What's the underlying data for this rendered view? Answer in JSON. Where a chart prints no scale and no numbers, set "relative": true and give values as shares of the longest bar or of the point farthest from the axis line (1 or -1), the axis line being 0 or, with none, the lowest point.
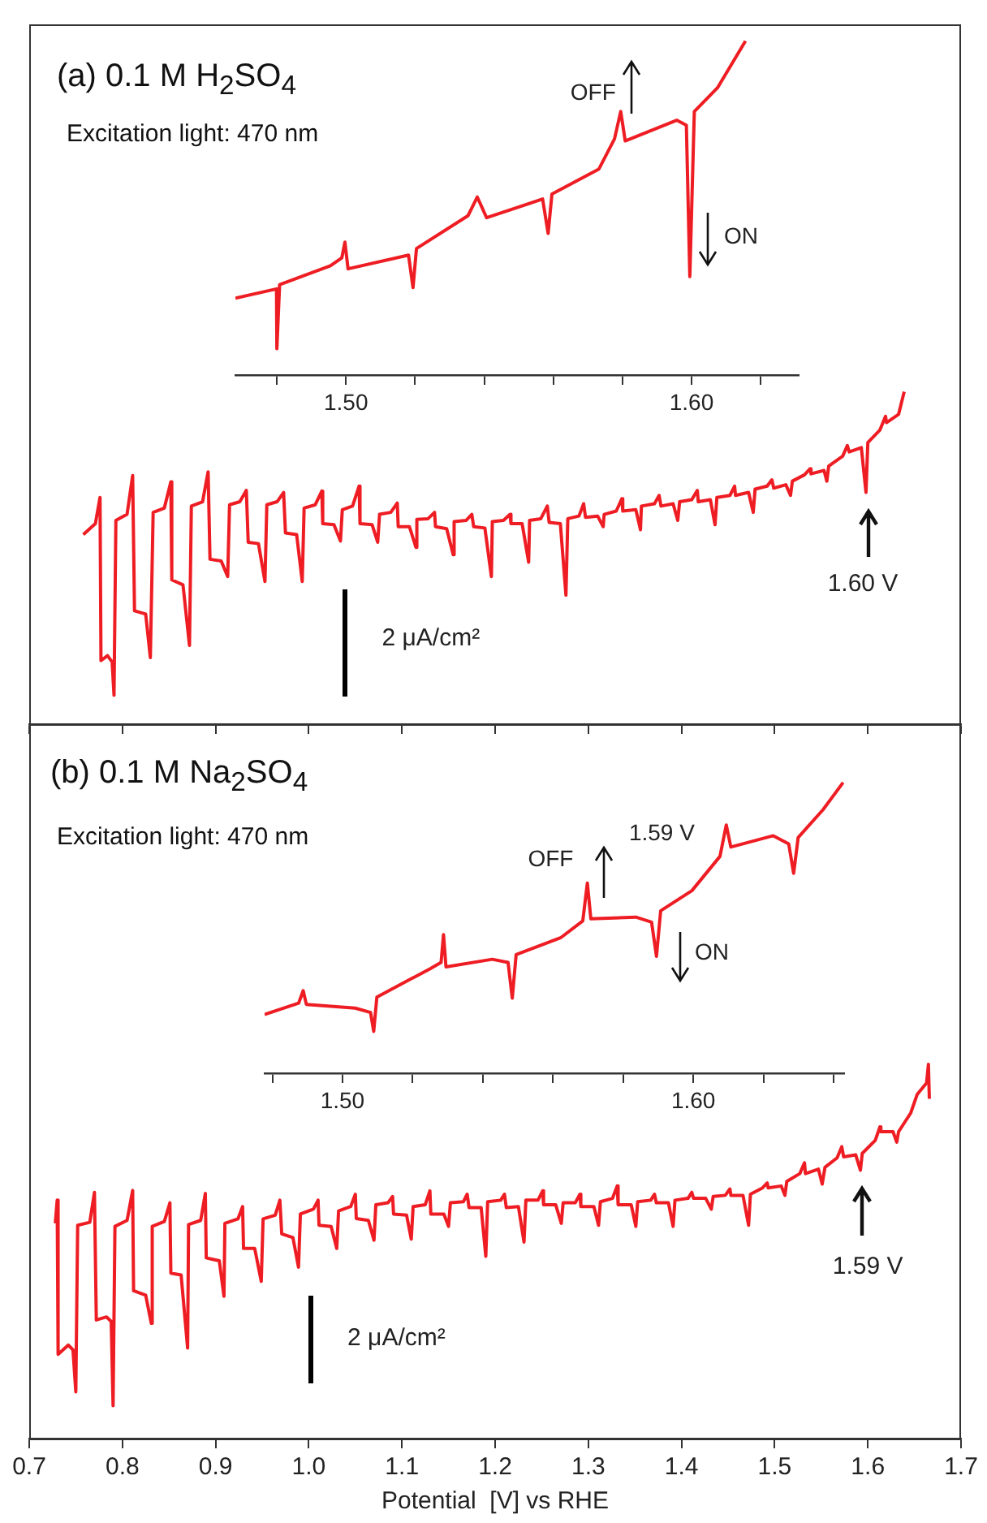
{
  "chart_data": [
    {
      "type": "line",
      "title": "(a) 0.1 M H$_{2}$SO$_{4}$",
      "subtitle": "Excitation light: 470 nm",
      "relative": true,
      "color": "#ee1d23",
      "tick_labels": false,
      "xlim": [
        0.7,
        1.7
      ],
      "xticks": [
        0.7,
        0.8,
        0.9,
        1,
        1.1,
        1.2,
        1.3,
        1.4,
        1.5,
        1.6,
        1.7
      ],
      "x": [
        0.758,
        0.771,
        0.776,
        0.777,
        0.784,
        0.789,
        0.791,
        0.793,
        0.805,
        0.811,
        0.813,
        0.825,
        0.83,
        0.833,
        0.845,
        0.852,
        0.853,
        0.865,
        0.872,
        0.874,
        0.886,
        0.892,
        0.894,
        0.906,
        0.913,
        0.915,
        0.926,
        0.933,
        0.935,
        0.946,
        0.953,
        0.955,
        0.966,
        0.973,
        0.975,
        0.987,
        0.993,
        0.995,
        1.007,
        1.014,
        1.015,
        1.027,
        1.034,
        1.036,
        1.047,
        1.054,
        1.055,
        1.068,
        1.074,
        1.076,
        1.088,
        1.095,
        1.096,
        1.108,
        1.115,
        1.116,
        1.128,
        1.135,
        1.136,
        1.148,
        1.155,
        1.156,
        1.169,
        1.175,
        1.177,
        1.189,
        1.196,
        1.197,
        1.209,
        1.216,
        1.217,
        1.229,
        1.236,
        1.237,
        1.249,
        1.256,
        1.258,
        1.27,
        1.276,
        1.278,
        1.29,
        1.295,
        1.297,
        1.31,
        1.316,
        1.317,
        1.33,
        1.336,
        1.337,
        1.351,
        1.356,
        1.357,
        1.371,
        1.376,
        1.378,
        1.391,
        1.396,
        1.398,
        1.411,
        1.417,
        1.418,
        1.431,
        1.436,
        1.438,
        1.452,
        1.457,
        1.458,
        1.472,
        1.477,
        1.479,
        1.492,
        1.497,
        1.499,
        1.512,
        1.517,
        1.519,
        1.532,
        1.538,
        1.539,
        1.553,
        1.556,
        1.558,
        1.573,
        1.578,
        1.58,
        1.593,
        1.598,
        1.6,
        1.613,
        1.619,
        1.62,
        1.633,
        1.639
      ],
      "values": [
        0.57,
        0.603,
        0.682,
        0.191,
        0.206,
        0.187,
        0.087,
        0.613,
        0.631,
        0.748,
        0.341,
        0.331,
        0.2,
        0.637,
        0.65,
        0.729,
        0.434,
        0.419,
        0.237,
        0.656,
        0.669,
        0.759,
        0.496,
        0.491,
        0.444,
        0.66,
        0.669,
        0.703,
        0.547,
        0.543,
        0.429,
        0.66,
        0.669,
        0.697,
        0.575,
        0.57,
        0.429,
        0.65,
        0.66,
        0.701,
        0.603,
        0.6,
        0.551,
        0.645,
        0.656,
        0.716,
        0.603,
        0.6,
        0.547,
        0.631,
        0.637,
        0.665,
        0.594,
        0.594,
        0.532,
        0.616,
        0.618,
        0.637,
        0.594,
        0.588,
        0.51,
        0.609,
        0.613,
        0.631,
        0.594,
        0.59,
        0.444,
        0.609,
        0.613,
        0.631,
        0.603,
        0.603,
        0.487,
        0.613,
        0.618,
        0.656,
        0.607,
        0.603,
        0.388,
        0.618,
        0.626,
        0.663,
        0.622,
        0.626,
        0.594,
        0.631,
        0.641,
        0.678,
        0.641,
        0.645,
        0.585,
        0.656,
        0.663,
        0.688,
        0.656,
        0.663,
        0.613,
        0.669,
        0.675,
        0.703,
        0.669,
        0.675,
        0.6,
        0.682,
        0.688,
        0.716,
        0.688,
        0.697,
        0.637,
        0.707,
        0.716,
        0.735,
        0.71,
        0.72,
        0.688,
        0.731,
        0.75,
        0.768,
        0.753,
        0.763,
        0.731,
        0.776,
        0.806,
        0.838,
        0.819,
        0.832,
        0.697,
        0.847,
        0.885,
        0.926,
        0.907,
        0.932,
        1.0
      ],
      "annotations": [
        "1.60 V",
        "2 μA/cm²"
      ]
    },
    {
      "type": "line",
      "relative": true,
      "color": "#ee1d23",
      "tick_labels": "x",
      "xlim": [
        1.468,
        1.631
      ],
      "xticks": [
        {
          "value": 1.48,
          "label": null
        },
        {
          "value": 1.5,
          "label": "1.50"
        },
        {
          "value": 1.52,
          "label": null
        },
        {
          "value": 1.54,
          "label": null
        },
        {
          "value": 1.56,
          "label": null
        },
        {
          "value": 1.58,
          "label": null
        },
        {
          "value": 1.6,
          "label": "1.60"
        },
        {
          "value": 1.62,
          "label": null
        }
      ],
      "x": [
        1.468,
        1.4799,
        1.48,
        1.4808,
        1.4955,
        1.4988,
        1.4997,
        1.5006,
        1.5181,
        1.5194,
        1.5204,
        1.5353,
        1.538,
        1.5407,
        1.5569,
        1.5585,
        1.5596,
        1.5732,
        1.5777,
        1.5795,
        1.5808,
        1.5957,
        1.5985,
        1.5995,
        1.6008,
        1.6075,
        1.6156
      ],
      "values": [
        0.23,
        0.258,
        0.079,
        0.271,
        0.327,
        0.351,
        0.398,
        0.318,
        0.359,
        0.262,
        0.379,
        0.477,
        0.533,
        0.471,
        0.527,
        0.424,
        0.542,
        0.617,
        0.707,
        0.789,
        0.701,
        0.763,
        0.748,
        0.295,
        0.789,
        0.86,
        1.0
      ],
      "annotations": [
        "OFF",
        "ON"
      ]
    },
    {
      "type": "line",
      "title": "(b) 0.1 M Na$_{2}$SO$_{4}$",
      "subtitle": "Excitation light: 470 nm",
      "relative": true,
      "color": "#ee1d23",
      "tick_labels": "x",
      "xlabel": "Potential  [V] vs RHE",
      "xlim": [
        0.7,
        1.7
      ],
      "xticks": [
        0.7,
        0.8,
        0.9,
        {
          "value": 1,
          "label": "1.0"
        },
        1.1,
        1.2,
        1.3,
        1.4,
        1.5,
        1.6,
        1.7
      ],
      "x": [
        0.728,
        0.73,
        0.731,
        0.742,
        0.747,
        0.75,
        0.752,
        0.765,
        0.77,
        0.772,
        0.783,
        0.788,
        0.79,
        0.792,
        0.805,
        0.811,
        0.812,
        0.825,
        0.831,
        0.832,
        0.845,
        0.851,
        0.852,
        0.863,
        0.87,
        0.871,
        0.884,
        0.889,
        0.89,
        0.904,
        0.909,
        0.91,
        0.924,
        0.929,
        0.93,
        0.942,
        0.949,
        0.951,
        0.964,
        0.969,
        0.971,
        0.983,
        0.989,
        0.991,
        1.005,
        1.01,
        1.011,
        1.024,
        1.03,
        1.032,
        1.045,
        1.05,
        1.051,
        1.064,
        1.07,
        1.072,
        1.085,
        1.09,
        1.091,
        1.105,
        1.11,
        1.112,
        1.125,
        1.13,
        1.131,
        1.145,
        1.15,
        1.152,
        1.166,
        1.17,
        1.172,
        1.185,
        1.19,
        1.192,
        1.206,
        1.21,
        1.212,
        1.225,
        1.231,
        1.233,
        1.246,
        1.251,
        1.252,
        1.265,
        1.271,
        1.273,
        1.286,
        1.291,
        1.292,
        1.306,
        1.311,
        1.313,
        1.326,
        1.331,
        1.332,
        1.346,
        1.351,
        1.353,
        1.367,
        1.371,
        1.373,
        1.386,
        1.391,
        1.393,
        1.407,
        1.411,
        1.413,
        1.426,
        1.432,
        1.434,
        1.447,
        1.452,
        1.453,
        1.466,
        1.472,
        1.474,
        1.487,
        1.492,
        1.493,
        1.507,
        1.511,
        1.513,
        1.527,
        1.532,
        1.533,
        1.547,
        1.551,
        1.554,
        1.567,
        1.572,
        1.574,
        1.587,
        1.592,
        1.594,
        1.608,
        1.613,
        1.614,
        1.627,
        1.631,
        1.633,
        1.646,
        1.653,
        1.663,
        1.665,
        1.666
      ],
      "values": [
        0.575,
        0.637,
        0.225,
        0.25,
        0.237,
        0.125,
        0.57,
        0.578,
        0.658,
        0.317,
        0.325,
        0.313,
        0.088,
        0.567,
        0.583,
        0.663,
        0.395,
        0.383,
        0.308,
        0.567,
        0.58,
        0.63,
        0.442,
        0.437,
        0.242,
        0.572,
        0.583,
        0.655,
        0.483,
        0.475,
        0.38,
        0.575,
        0.587,
        0.62,
        0.508,
        0.508,
        0.42,
        0.587,
        0.597,
        0.637,
        0.547,
        0.537,
        0.458,
        0.6,
        0.613,
        0.637,
        0.57,
        0.567,
        0.508,
        0.608,
        0.62,
        0.653,
        0.588,
        0.583,
        0.53,
        0.625,
        0.63,
        0.647,
        0.6,
        0.597,
        0.533,
        0.62,
        0.625,
        0.662,
        0.6,
        0.6,
        0.567,
        0.63,
        0.633,
        0.653,
        0.617,
        0.617,
        0.487,
        0.633,
        0.637,
        0.653,
        0.617,
        0.62,
        0.525,
        0.637,
        0.637,
        0.662,
        0.625,
        0.625,
        0.575,
        0.63,
        0.63,
        0.653,
        0.62,
        0.62,
        0.57,
        0.633,
        0.642,
        0.675,
        0.625,
        0.625,
        0.567,
        0.633,
        0.637,
        0.653,
        0.63,
        0.63,
        0.567,
        0.637,
        0.642,
        0.658,
        0.642,
        0.642,
        0.613,
        0.647,
        0.65,
        0.667,
        0.65,
        0.65,
        0.57,
        0.653,
        0.67,
        0.683,
        0.67,
        0.675,
        0.65,
        0.687,
        0.708,
        0.737,
        0.708,
        0.72,
        0.68,
        0.725,
        0.75,
        0.78,
        0.753,
        0.758,
        0.717,
        0.762,
        0.797,
        0.833,
        0.82,
        0.82,
        0.792,
        0.82,
        0.87,
        0.92,
        0.95,
        1.0,
        0.908
      ],
      "annotations": [
        "1.59 V",
        "2 μA/cm²"
      ]
    },
    {
      "type": "line",
      "relative": true,
      "color": "#ee1d23",
      "tick_labels": "x",
      "xlim": [
        1.4778,
        1.643
      ],
      "xticks": [
        {
          "value": 1.48,
          "label": null
        },
        {
          "value": 1.5,
          "label": "1.50"
        },
        {
          "value": 1.52,
          "label": null
        },
        {
          "value": 1.54,
          "label": null
        },
        {
          "value": 1.56,
          "label": null
        },
        {
          "value": 1.58,
          "label": null
        },
        {
          "value": 1.6,
          "label": "1.60"
        },
        {
          "value": 1.62,
          "label": null
        },
        {
          "value": 1.64,
          "label": null
        }
      ],
      "x": [
        1.4778,
        1.4875,
        1.4888,
        1.4897,
        1.5036,
        1.508,
        1.5089,
        1.5098,
        1.5249,
        1.5281,
        1.5288,
        1.5295,
        1.5427,
        1.5472,
        1.5484,
        1.5495,
        1.5623,
        1.5685,
        1.5698,
        1.5708,
        1.5836,
        1.5881,
        1.5895,
        1.5907,
        1.5996,
        1.6076,
        1.6094,
        1.6107,
        1.6228,
        1.6272,
        1.6286,
        1.6299,
        1.637,
        1.6427
      ],
      "values": [
        0.202,
        0.241,
        0.284,
        0.237,
        0.224,
        0.209,
        0.144,
        0.262,
        0.359,
        0.381,
        0.477,
        0.366,
        0.392,
        0.381,
        0.258,
        0.408,
        0.467,
        0.524,
        0.654,
        0.531,
        0.537,
        0.52,
        0.402,
        0.559,
        0.628,
        0.746,
        0.854,
        0.778,
        0.817,
        0.789,
        0.688,
        0.811,
        0.907,
        1.0
      ],
      "annotations": [
        "OFF",
        "1.59 V",
        "ON"
      ]
    }
  ]
}
